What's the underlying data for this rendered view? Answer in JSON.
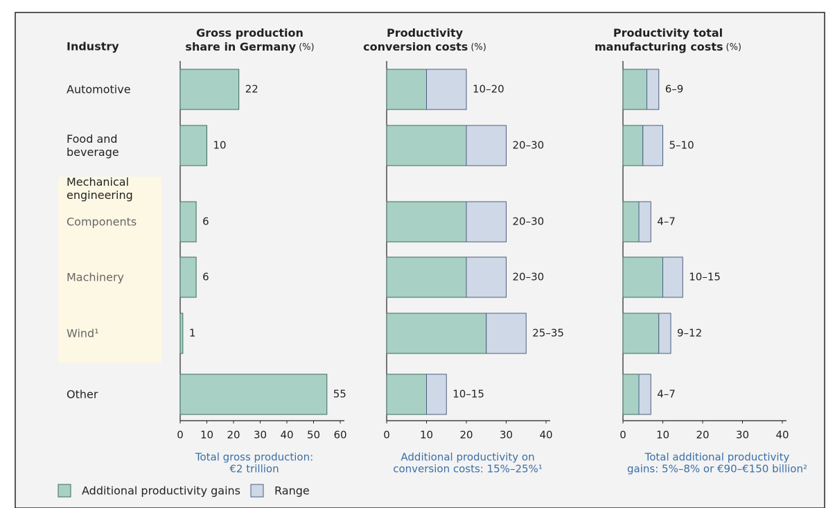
{
  "industry_header": "Industry",
  "group_label": "Mechanical engineering",
  "chart_data": [
    {
      "type": "bar",
      "orientation": "horizontal",
      "title": [
        "Gross production",
        "share in Germany"
      ],
      "unit": "(%)",
      "categories": [
        "Automotive",
        "Food and beverage",
        "Components",
        "Machinery",
        "Wind¹",
        "Other"
      ],
      "values": [
        22,
        10,
        6,
        6,
        1,
        55
      ],
      "color": "#a9d0c4",
      "xlim": [
        0,
        60
      ],
      "xticks": [
        0,
        10,
        20,
        30,
        40,
        50,
        60
      ],
      "note": [
        "Total gross production:",
        "€2 trillion"
      ]
    },
    {
      "type": "stacked_bar",
      "orientation": "horizontal",
      "title": [
        "Productivity",
        "conversion costs"
      ],
      "unit": "(%)",
      "series": [
        {
          "name": "Additional productivity gains",
          "color": "#a9d0c4",
          "values": [
            10,
            20,
            20,
            20,
            25,
            10
          ]
        },
        {
          "name": "Range",
          "color": "#cfd8e6",
          "values": [
            10,
            10,
            10,
            10,
            10,
            5
          ]
        }
      ],
      "value_labels": [
        "10–20",
        "20–30",
        "20–30",
        "20–30",
        "25–35",
        "10–15"
      ],
      "xlim": [
        0,
        40
      ],
      "xticks": [
        0,
        10,
        20,
        30,
        40
      ],
      "note": [
        "Additional productivity on",
        "conversion costs: 15%–25%¹"
      ]
    },
    {
      "type": "stacked_bar",
      "orientation": "horizontal",
      "title": [
        "Productivity total",
        "manufacturing costs"
      ],
      "unit": "(%)",
      "series": [
        {
          "color": "#a9d0c4",
          "values": [
            6,
            5,
            4,
            10,
            9,
            4
          ]
        },
        {
          "color": "#cfd8e6",
          "values": [
            3,
            5,
            3,
            5,
            3,
            3
          ]
        }
      ],
      "value_labels": [
        "6–9",
        "5–10",
        "4–7",
        "10–15",
        "9–12",
        "4–7"
      ],
      "xlim": [
        0,
        40
      ],
      "xticks": [
        0,
        10,
        20,
        30,
        40
      ],
      "note": [
        "Total additional productivity",
        "gains: 5%–8% or €90–€150 billion²"
      ]
    }
  ]
}
